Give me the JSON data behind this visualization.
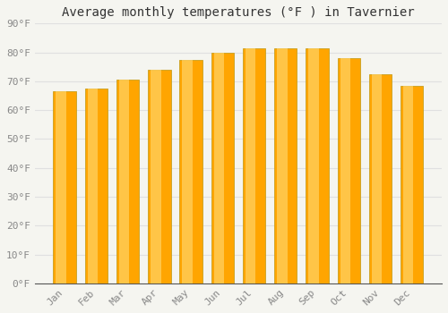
{
  "title": "Average monthly temperatures (°F ) in Tavernier",
  "months": [
    "Jan",
    "Feb",
    "Mar",
    "Apr",
    "May",
    "Jun",
    "Jul",
    "Aug",
    "Sep",
    "Oct",
    "Nov",
    "Dec"
  ],
  "values": [
    66.5,
    67.5,
    70.5,
    74.0,
    77.5,
    80.0,
    81.5,
    81.5,
    81.5,
    78.0,
    72.5,
    68.5
  ],
  "bar_color_main": "#FFA500",
  "bar_color_light": "#FFD060",
  "bar_color_edge": "#C8A020",
  "ylim": [
    0,
    90
  ],
  "yticks": [
    0,
    10,
    20,
    30,
    40,
    50,
    60,
    70,
    80,
    90
  ],
  "ytick_labels": [
    "0°F",
    "10°F",
    "20°F",
    "30°F",
    "40°F",
    "50°F",
    "60°F",
    "70°F",
    "80°F",
    "90°F"
  ],
  "background_color": "#f5f5f0",
  "grid_color": "#e0e0e0",
  "title_fontsize": 10,
  "tick_fontsize": 8,
  "bar_width": 0.72
}
